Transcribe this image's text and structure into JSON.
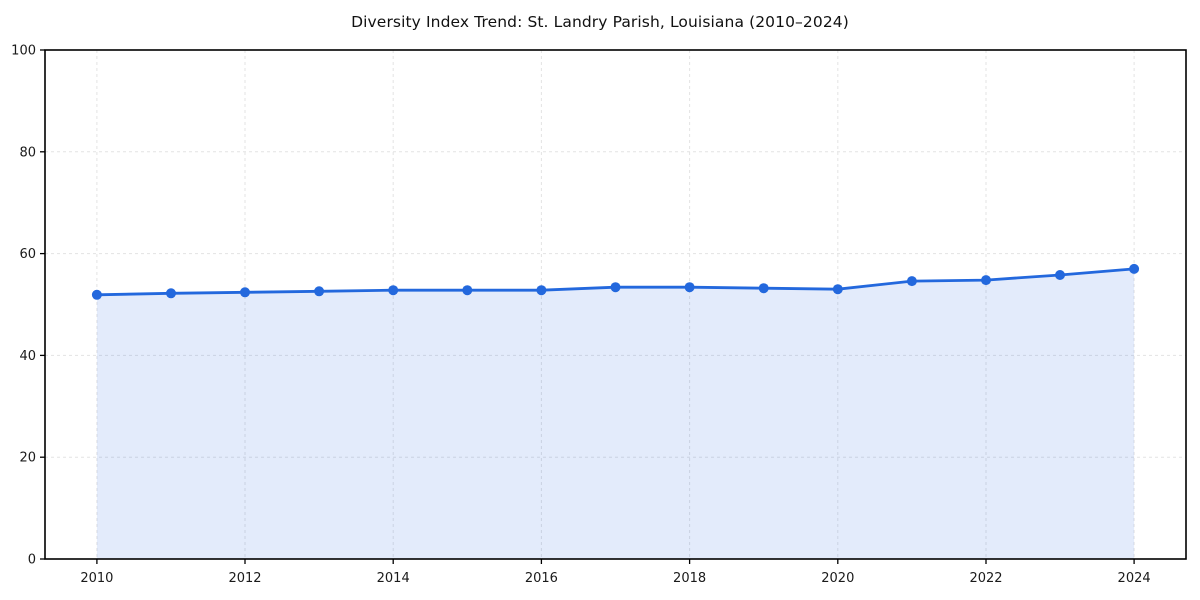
{
  "page": {
    "background": "#ffffff"
  },
  "chart_data": {
    "type": "area",
    "title": "Diversity Index Trend: St. Landry Parish, Louisiana (2010–2024)",
    "x": [
      2010,
      2011,
      2012,
      2013,
      2014,
      2015,
      2016,
      2017,
      2018,
      2019,
      2020,
      2021,
      2022,
      2023,
      2024
    ],
    "series": [
      {
        "name": "Diversity Index",
        "values": [
          51.9,
          52.2,
          52.4,
          52.6,
          52.8,
          52.8,
          52.8,
          53.4,
          53.4,
          53.2,
          53.0,
          54.6,
          54.8,
          55.8,
          57.0
        ]
      }
    ],
    "xlabel": "",
    "ylabel": "",
    "xticks": [
      2010,
      2012,
      2014,
      2016,
      2018,
      2020,
      2022,
      2024
    ],
    "yticks": [
      0,
      20,
      40,
      60,
      80,
      100
    ],
    "xlim": [
      2009.3,
      2024.7
    ],
    "ylim": [
      0,
      100
    ],
    "grid": true,
    "grid_style": "dashed",
    "legend_position": "none",
    "marker": "circle",
    "colors": {
      "line": "#2368dd",
      "marker": "#2368dd",
      "fill": "rgba(35,104,221,0.13)",
      "grid": "#e3e3e3",
      "axis": "#000000",
      "tick_label": "#1a1a1a",
      "title": "#111111"
    }
  }
}
